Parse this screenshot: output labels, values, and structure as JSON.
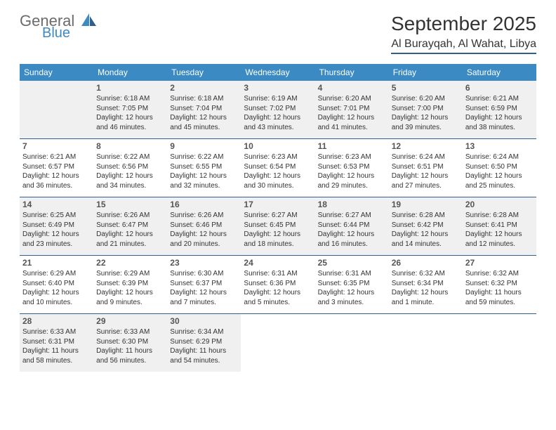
{
  "brand": {
    "name_a": "General",
    "name_b": "Blue"
  },
  "title": "September 2025",
  "location": "Al Burayqah, Al Wahat, Libya",
  "colors": {
    "header_bar": "#3b8ac4",
    "rule": "#2f5f8a",
    "shaded": "#f0f0f0",
    "text": "#333333",
    "bg": "#ffffff"
  },
  "days_of_week": [
    "Sunday",
    "Monday",
    "Tuesday",
    "Wednesday",
    "Thursday",
    "Friday",
    "Saturday"
  ],
  "weeks": [
    [
      {
        "n": "",
        "shaded": true
      },
      {
        "n": "1",
        "shaded": true,
        "sunrise": "Sunrise: 6:18 AM",
        "sunset": "Sunset: 7:05 PM",
        "day1": "Daylight: 12 hours",
        "day2": "and 46 minutes."
      },
      {
        "n": "2",
        "shaded": true,
        "sunrise": "Sunrise: 6:18 AM",
        "sunset": "Sunset: 7:04 PM",
        "day1": "Daylight: 12 hours",
        "day2": "and 45 minutes."
      },
      {
        "n": "3",
        "shaded": true,
        "sunrise": "Sunrise: 6:19 AM",
        "sunset": "Sunset: 7:02 PM",
        "day1": "Daylight: 12 hours",
        "day2": "and 43 minutes."
      },
      {
        "n": "4",
        "shaded": true,
        "sunrise": "Sunrise: 6:20 AM",
        "sunset": "Sunset: 7:01 PM",
        "day1": "Daylight: 12 hours",
        "day2": "and 41 minutes."
      },
      {
        "n": "5",
        "shaded": true,
        "sunrise": "Sunrise: 6:20 AM",
        "sunset": "Sunset: 7:00 PM",
        "day1": "Daylight: 12 hours",
        "day2": "and 39 minutes."
      },
      {
        "n": "6",
        "shaded": true,
        "sunrise": "Sunrise: 6:21 AM",
        "sunset": "Sunset: 6:59 PM",
        "day1": "Daylight: 12 hours",
        "day2": "and 38 minutes."
      }
    ],
    [
      {
        "n": "7",
        "sunrise": "Sunrise: 6:21 AM",
        "sunset": "Sunset: 6:57 PM",
        "day1": "Daylight: 12 hours",
        "day2": "and 36 minutes."
      },
      {
        "n": "8",
        "sunrise": "Sunrise: 6:22 AM",
        "sunset": "Sunset: 6:56 PM",
        "day1": "Daylight: 12 hours",
        "day2": "and 34 minutes."
      },
      {
        "n": "9",
        "sunrise": "Sunrise: 6:22 AM",
        "sunset": "Sunset: 6:55 PM",
        "day1": "Daylight: 12 hours",
        "day2": "and 32 minutes."
      },
      {
        "n": "10",
        "sunrise": "Sunrise: 6:23 AM",
        "sunset": "Sunset: 6:54 PM",
        "day1": "Daylight: 12 hours",
        "day2": "and 30 minutes."
      },
      {
        "n": "11",
        "sunrise": "Sunrise: 6:23 AM",
        "sunset": "Sunset: 6:53 PM",
        "day1": "Daylight: 12 hours",
        "day2": "and 29 minutes."
      },
      {
        "n": "12",
        "sunrise": "Sunrise: 6:24 AM",
        "sunset": "Sunset: 6:51 PM",
        "day1": "Daylight: 12 hours",
        "day2": "and 27 minutes."
      },
      {
        "n": "13",
        "sunrise": "Sunrise: 6:24 AM",
        "sunset": "Sunset: 6:50 PM",
        "day1": "Daylight: 12 hours",
        "day2": "and 25 minutes."
      }
    ],
    [
      {
        "n": "14",
        "shaded": true,
        "sunrise": "Sunrise: 6:25 AM",
        "sunset": "Sunset: 6:49 PM",
        "day1": "Daylight: 12 hours",
        "day2": "and 23 minutes."
      },
      {
        "n": "15",
        "shaded": true,
        "sunrise": "Sunrise: 6:26 AM",
        "sunset": "Sunset: 6:47 PM",
        "day1": "Daylight: 12 hours",
        "day2": "and 21 minutes."
      },
      {
        "n": "16",
        "shaded": true,
        "sunrise": "Sunrise: 6:26 AM",
        "sunset": "Sunset: 6:46 PM",
        "day1": "Daylight: 12 hours",
        "day2": "and 20 minutes."
      },
      {
        "n": "17",
        "shaded": true,
        "sunrise": "Sunrise: 6:27 AM",
        "sunset": "Sunset: 6:45 PM",
        "day1": "Daylight: 12 hours",
        "day2": "and 18 minutes."
      },
      {
        "n": "18",
        "shaded": true,
        "sunrise": "Sunrise: 6:27 AM",
        "sunset": "Sunset: 6:44 PM",
        "day1": "Daylight: 12 hours",
        "day2": "and 16 minutes."
      },
      {
        "n": "19",
        "shaded": true,
        "sunrise": "Sunrise: 6:28 AM",
        "sunset": "Sunset: 6:42 PM",
        "day1": "Daylight: 12 hours",
        "day2": "and 14 minutes."
      },
      {
        "n": "20",
        "shaded": true,
        "sunrise": "Sunrise: 6:28 AM",
        "sunset": "Sunset: 6:41 PM",
        "day1": "Daylight: 12 hours",
        "day2": "and 12 minutes."
      }
    ],
    [
      {
        "n": "21",
        "sunrise": "Sunrise: 6:29 AM",
        "sunset": "Sunset: 6:40 PM",
        "day1": "Daylight: 12 hours",
        "day2": "and 10 minutes."
      },
      {
        "n": "22",
        "sunrise": "Sunrise: 6:29 AM",
        "sunset": "Sunset: 6:39 PM",
        "day1": "Daylight: 12 hours",
        "day2": "and 9 minutes."
      },
      {
        "n": "23",
        "sunrise": "Sunrise: 6:30 AM",
        "sunset": "Sunset: 6:37 PM",
        "day1": "Daylight: 12 hours",
        "day2": "and 7 minutes."
      },
      {
        "n": "24",
        "sunrise": "Sunrise: 6:31 AM",
        "sunset": "Sunset: 6:36 PM",
        "day1": "Daylight: 12 hours",
        "day2": "and 5 minutes."
      },
      {
        "n": "25",
        "sunrise": "Sunrise: 6:31 AM",
        "sunset": "Sunset: 6:35 PM",
        "day1": "Daylight: 12 hours",
        "day2": "and 3 minutes."
      },
      {
        "n": "26",
        "sunrise": "Sunrise: 6:32 AM",
        "sunset": "Sunset: 6:34 PM",
        "day1": "Daylight: 12 hours",
        "day2": "and 1 minute."
      },
      {
        "n": "27",
        "sunrise": "Sunrise: 6:32 AM",
        "sunset": "Sunset: 6:32 PM",
        "day1": "Daylight: 11 hours",
        "day2": "and 59 minutes."
      }
    ],
    [
      {
        "n": "28",
        "shaded": true,
        "sunrise": "Sunrise: 6:33 AM",
        "sunset": "Sunset: 6:31 PM",
        "day1": "Daylight: 11 hours",
        "day2": "and 58 minutes."
      },
      {
        "n": "29",
        "shaded": true,
        "sunrise": "Sunrise: 6:33 AM",
        "sunset": "Sunset: 6:30 PM",
        "day1": "Daylight: 11 hours",
        "day2": "and 56 minutes."
      },
      {
        "n": "30",
        "shaded": true,
        "sunrise": "Sunrise: 6:34 AM",
        "sunset": "Sunset: 6:29 PM",
        "day1": "Daylight: 11 hours",
        "day2": "and 54 minutes."
      },
      {
        "n": ""
      },
      {
        "n": ""
      },
      {
        "n": ""
      },
      {
        "n": ""
      }
    ]
  ]
}
